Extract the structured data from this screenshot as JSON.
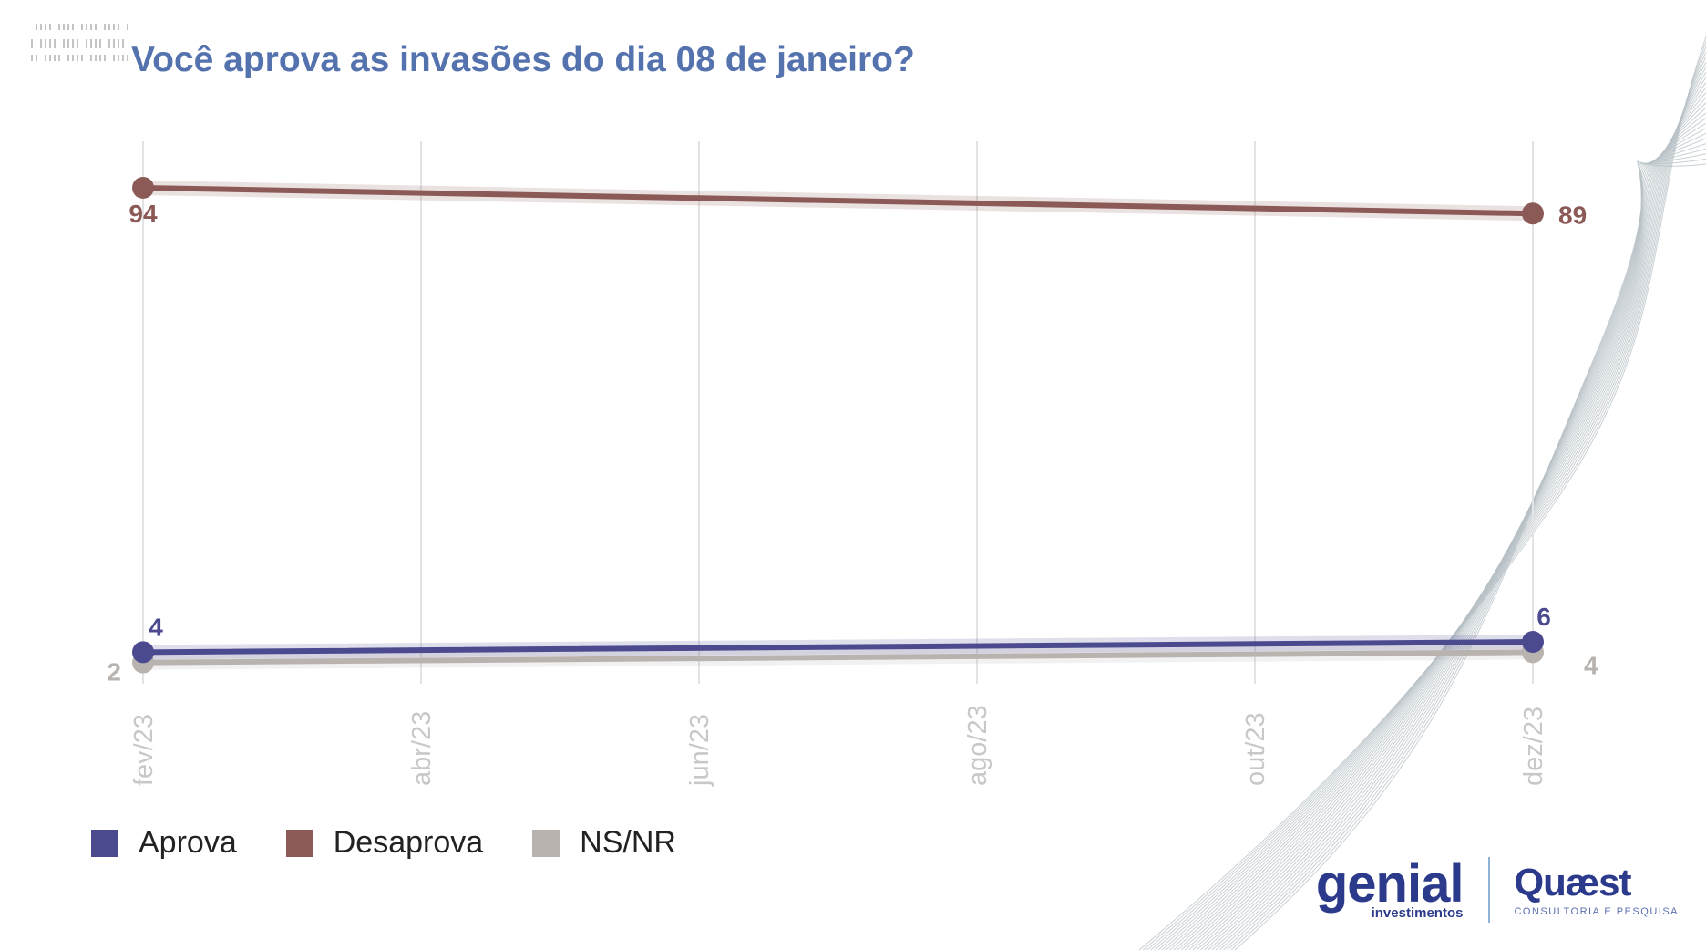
{
  "header": {
    "title": "Você aprova as invasões do dia 08 de janeiro?"
  },
  "chart_data": {
    "type": "line",
    "title": "Você aprova as invasões do dia 08 de janeiro?",
    "x_ticks": [
      "fev/23",
      "abr/23",
      "jun/23",
      "ago/23",
      "out/23",
      "dez/23"
    ],
    "x_values": [
      "fev/23",
      "dez/23"
    ],
    "ylim": [
      0,
      100
    ],
    "grid": "vertical",
    "legend_position": "bottom-left",
    "series": [
      {
        "name": "Aprova",
        "values": [
          4,
          6
        ],
        "color": "#4b4a8f"
      },
      {
        "name": "Desaprova",
        "values": [
          94,
          89
        ],
        "color": "#8c5a56"
      },
      {
        "name": "NS/NR",
        "values": [
          2,
          4
        ],
        "color": "#b9b3b0"
      }
    ]
  },
  "legend": {
    "items": [
      {
        "label": "Aprova",
        "color": "#4b4a8f"
      },
      {
        "label": "Desaprova",
        "color": "#8c5a56"
      },
      {
        "label": "NS/NR",
        "color": "#b9b3b0"
      }
    ]
  },
  "branding": {
    "genial_name": "genial",
    "genial_sub": "investimentos",
    "quaest_name": "Quæst",
    "quaest_sub": "CONSULTORIA E PESQUISA"
  }
}
